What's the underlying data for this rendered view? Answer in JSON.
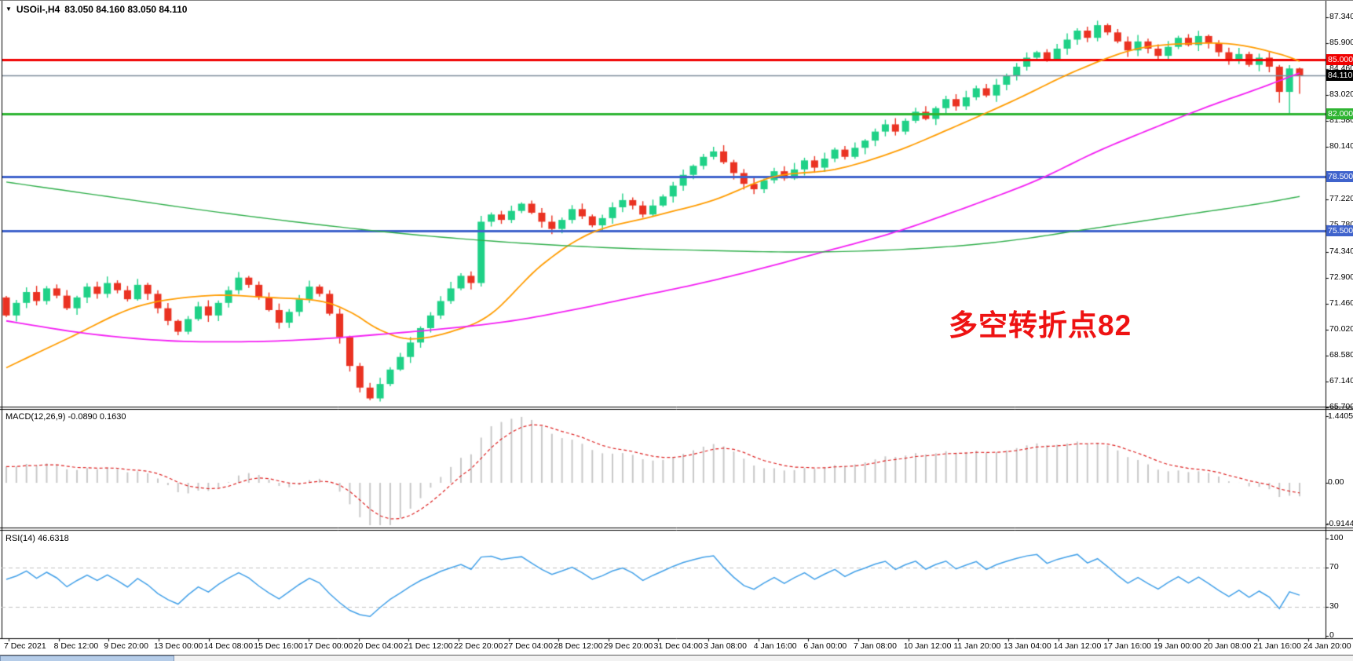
{
  "header": {
    "dropdown_icon": "▼",
    "symbol_period": "USOil-,H4",
    "ohlc_values": "83.050 84.160 83.050 84.110"
  },
  "annotation": {
    "text": "多空转折点82",
    "color": "#ee1212"
  },
  "price_axis": {
    "max_price": 87.34,
    "min_price": 65.7,
    "ticks": [
      87.34,
      85.9,
      84.46,
      83.02,
      81.58,
      80.14,
      77.22,
      75.78,
      74.34,
      72.9,
      71.46,
      70.02,
      68.58,
      67.14,
      65.7
    ]
  },
  "hlines": [
    {
      "label": "85.000",
      "price": 85.0,
      "color": "#f00000",
      "width": 3
    },
    {
      "label": "82.000",
      "price": 82.0,
      "color": "#2eb432",
      "width": 3
    },
    {
      "label": "78.500",
      "price": 78.5,
      "color": "#3f63cc",
      "width": 3
    },
    {
      "label": "75.500",
      "price": 75.5,
      "color": "#3f63cc",
      "width": 3
    }
  ],
  "current_price": {
    "label": "84.110",
    "price": 84.11,
    "line_color": "#7d8c9b",
    "tag_bg": "#000000",
    "tag_fg": "#ffffff"
  },
  "chart_data": {
    "type": "candlestick",
    "symbol": "USOil-",
    "timeframe": "H4",
    "bull_color": "#1fd187",
    "bear_color": "#ea3222",
    "first_open": 71.8,
    "closes": [
      70.8,
      71.5,
      72.1,
      71.6,
      72.3,
      71.9,
      71.2,
      71.8,
      72.4,
      72.0,
      72.6,
      72.2,
      71.7,
      72.5,
      72.0,
      71.2,
      70.5,
      69.9,
      70.6,
      71.3,
      70.8,
      71.5,
      72.2,
      72.9,
      72.5,
      71.8,
      71.1,
      70.4,
      71.0,
      71.7,
      72.4,
      72.0,
      70.9,
      69.6,
      68.0,
      66.8,
      66.2,
      67.0,
      67.8,
      68.5,
      69.3,
      70.1,
      70.8,
      71.6,
      72.3,
      73.0,
      72.6,
      76.0,
      76.4,
      76.1,
      76.6,
      77.0,
      76.5,
      76.0,
      75.6,
      76.1,
      76.7,
      76.3,
      75.8,
      76.2,
      76.8,
      77.2,
      76.9,
      76.4,
      76.9,
      77.4,
      78.0,
      78.6,
      79.1,
      79.6,
      79.9,
      79.3,
      78.7,
      78.1,
      77.8,
      78.3,
      78.8,
      78.4,
      78.9,
      79.4,
      79.0,
      79.5,
      80.0,
      79.6,
      80.1,
      80.5,
      81.0,
      81.4,
      81.0,
      81.6,
      82.1,
      81.7,
      82.3,
      82.8,
      82.4,
      82.9,
      83.4,
      83.0,
      83.6,
      84.1,
      84.6,
      85.1,
      85.4,
      85.0,
      85.6,
      86.1,
      86.6,
      86.2,
      86.9,
      86.5,
      86.0,
      85.5,
      86.0,
      85.6,
      85.2,
      85.7,
      86.2,
      85.8,
      86.3,
      85.9,
      85.4,
      84.9,
      85.3,
      84.7,
      85.1,
      84.6,
      83.2,
      84.5,
      84.11
    ],
    "overrides": {
      "36": {
        "low": 66.1
      },
      "47": {
        "low": 72.4
      },
      "108": {
        "high": 87.15
      },
      "126": {
        "low": 82.6
      },
      "127": {
        "low": 81.95
      },
      "128": {
        "high": 84.55,
        "low": 83.1
      }
    },
    "last_candle_ohlc": {
      "open": 83.05,
      "high": 84.16,
      "low": 83.05,
      "close": 84.11
    },
    "moving_averages": [
      {
        "name": "fast-ma",
        "color": "#ff9c00",
        "anchors": [
          [
            0,
            67.9
          ],
          [
            6,
            69.5
          ],
          [
            13,
            71.3
          ],
          [
            20,
            71.9
          ],
          [
            26,
            71.8
          ],
          [
            31,
            71.6
          ],
          [
            34,
            71.0
          ],
          [
            37,
            70.0
          ],
          [
            40,
            69.5
          ],
          [
            44,
            69.9
          ],
          [
            48,
            70.9
          ],
          [
            53,
            73.6
          ],
          [
            58,
            75.4
          ],
          [
            64,
            76.3
          ],
          [
            70,
            77.2
          ],
          [
            76,
            78.5
          ],
          [
            82,
            78.9
          ],
          [
            88,
            79.9
          ],
          [
            94,
            81.3
          ],
          [
            100,
            82.8
          ],
          [
            106,
            84.4
          ],
          [
            112,
            85.6
          ],
          [
            118,
            85.9
          ],
          [
            122,
            85.8
          ],
          [
            126,
            85.3
          ],
          [
            128,
            84.9
          ]
        ]
      },
      {
        "name": "mid-ma",
        "color": "#f320f3",
        "anchors": [
          [
            0,
            70.5
          ],
          [
            8,
            69.8
          ],
          [
            16,
            69.4
          ],
          [
            24,
            69.35
          ],
          [
            31,
            69.5
          ],
          [
            38,
            69.8
          ],
          [
            44,
            70.1
          ],
          [
            50,
            70.5
          ],
          [
            56,
            71.1
          ],
          [
            62,
            71.8
          ],
          [
            68,
            72.5
          ],
          [
            74,
            73.3
          ],
          [
            80,
            74.2
          ],
          [
            86,
            75.1
          ],
          [
            90,
            75.8
          ],
          [
            96,
            77.0
          ],
          [
            102,
            78.3
          ],
          [
            108,
            79.9
          ],
          [
            114,
            81.3
          ],
          [
            119,
            82.4
          ],
          [
            124,
            83.4
          ],
          [
            128,
            84.25
          ]
        ]
      },
      {
        "name": "slow-ma",
        "color": "#2fae4a",
        "anchors": [
          [
            0,
            78.2
          ],
          [
            10,
            77.4
          ],
          [
            20,
            76.6
          ],
          [
            30,
            75.9
          ],
          [
            40,
            75.3
          ],
          [
            50,
            74.85
          ],
          [
            60,
            74.55
          ],
          [
            70,
            74.4
          ],
          [
            78,
            74.32
          ],
          [
            86,
            74.4
          ],
          [
            94,
            74.65
          ],
          [
            100,
            75.0
          ],
          [
            106,
            75.5
          ],
          [
            112,
            76.0
          ],
          [
            118,
            76.5
          ],
          [
            124,
            77.0
          ],
          [
            128,
            77.4
          ]
        ]
      }
    ]
  },
  "macd": {
    "label": "MACD(12,26,9)",
    "values": "-0.0890 0.1630",
    "axis_ticks": [
      "1.4405",
      "0.00",
      "-0.9144"
    ],
    "scale_max": 1.4405,
    "scale_min": -0.9144,
    "hist_color": "#c8c8c8",
    "signal_color": "#dd2222"
  },
  "rsi": {
    "label": "RSI(14)",
    "value": "46.6318",
    "axis_ticks": [
      "100",
      "70",
      "30",
      "0"
    ],
    "levels": [
      70,
      30
    ],
    "line_color": "#42a0e8",
    "level_color": "#c0c0c0"
  },
  "time_axis": {
    "labels": [
      "7 Dec 2021",
      "8 Dec 12:00",
      "9 Dec 20:00",
      "13 Dec 00:00",
      "14 Dec 08:00",
      "15 Dec 16:00",
      "17 Dec 00:00",
      "20 Dec 04:00",
      "21 Dec 12:00",
      "22 Dec 20:00",
      "27 Dec 04:00",
      "28 Dec 12:00",
      "29 Dec 20:00",
      "31 Dec 04:00",
      "3 Jan 08:00",
      "4 Jan 16:00",
      "6 Jan 00:00",
      "7 Jan 08:00",
      "10 Jan 12:00",
      "11 Jan 20:00",
      "13 Jan 04:00",
      "14 Jan 12:00",
      "17 Jan 16:00",
      "19 Jan 00:00",
      "20 Jan 08:00",
      "21 Jan 16:00",
      "24 Jan 20:00"
    ]
  },
  "bottom_strip": {
    "thumb_color": "#b5cce8",
    "track_color": "#f2f2f2"
  }
}
